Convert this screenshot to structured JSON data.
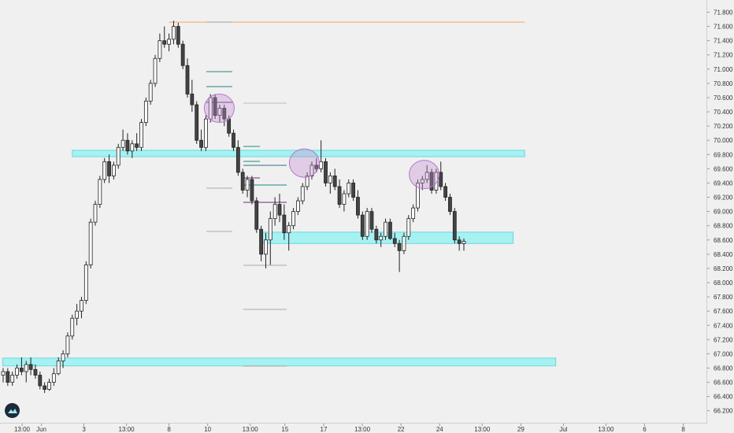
{
  "chart_data": {
    "type": "candlestick",
    "title": "",
    "xlabel": "",
    "ylabel": "",
    "ylim": [
      66.1,
      71.9
    ],
    "grid": false,
    "y_ticks": [
      "71.800",
      "71.600",
      "71.400",
      "71.200",
      "71.000",
      "70.800",
      "70.600",
      "70.400",
      "70.200",
      "70.000",
      "69.800",
      "69.600",
      "69.400",
      "69.200",
      "69.000",
      "68.800",
      "68.600",
      "68.400",
      "68.200",
      "68.000",
      "67.800",
      "67.600",
      "67.400",
      "67.200",
      "67.000",
      "66.800",
      "66.600",
      "66.400",
      "66.200"
    ],
    "y_tick_values": [
      71.8,
      71.6,
      71.4,
      71.2,
      71.0,
      70.8,
      70.6,
      70.4,
      70.2,
      70.0,
      69.8,
      69.6,
      69.4,
      69.2,
      69.0,
      68.8,
      68.6,
      68.4,
      68.2,
      68.0,
      67.8,
      67.6,
      67.4,
      67.2,
      67.0,
      66.8,
      66.6,
      66.4,
      66.2
    ],
    "x_ticks": [
      "13:00",
      "Jun",
      "3",
      "13:00",
      "8",
      "10",
      "13:00",
      "15",
      "17",
      "13:00",
      "22",
      "24",
      "13:00",
      "29",
      "Jul",
      "13:00",
      "6",
      "8"
    ],
    "x_tick_positions": [
      0.0,
      0.5,
      1.6,
      2.7,
      3.8,
      4.8,
      5.9,
      6.8,
      7.8,
      8.8,
      9.8,
      10.8,
      11.9,
      12.9,
      14.0,
      15.1,
      16.1,
      17.1
    ],
    "zones": [
      {
        "y_low": 69.77,
        "y_high": 69.86,
        "x_start": 1.3,
        "x_end": 13.0
      },
      {
        "y_low": 68.55,
        "y_high": 68.71,
        "x_start": 6.2,
        "x_end": 12.7
      },
      {
        "y_low": 66.83,
        "y_high": 66.94,
        "x_start": -0.5,
        "x_end": 13.8
      }
    ],
    "horizontal_levels": [
      {
        "y": 71.66,
        "x_start": 3.8,
        "x_end": 13.0,
        "color": "#f5a65b"
      }
    ],
    "circles": [
      {
        "x": 5.1,
        "y": 70.45
      },
      {
        "x": 7.3,
        "y": 69.68
      },
      {
        "x": 10.4,
        "y": 69.52
      }
    ],
    "series": [
      {
        "values": [
          [
            66.7,
            66.8,
            66.6,
            66.75
          ],
          [
            66.75,
            66.8,
            66.55,
            66.6
          ],
          [
            66.6,
            66.75,
            66.55,
            66.7
          ],
          [
            66.7,
            66.85,
            66.65,
            66.8
          ],
          [
            66.8,
            66.95,
            66.7,
            66.75
          ],
          [
            66.75,
            66.9,
            66.6,
            66.85
          ],
          [
            66.85,
            66.95,
            66.7,
            66.78
          ],
          [
            66.78,
            66.85,
            66.65,
            66.7
          ],
          [
            66.7,
            66.75,
            66.5,
            66.55
          ],
          [
            66.55,
            66.6,
            66.45,
            66.5
          ],
          [
            66.5,
            66.65,
            66.48,
            66.6
          ],
          [
            66.6,
            66.8,
            66.55,
            66.72
          ],
          [
            66.72,
            66.95,
            66.7,
            66.9
          ],
          [
            66.9,
            67.05,
            66.8,
            67.0
          ],
          [
            67.0,
            67.3,
            66.95,
            67.25
          ],
          [
            67.25,
            67.55,
            67.2,
            67.5
          ],
          [
            67.5,
            67.7,
            67.4,
            67.6
          ],
          [
            67.6,
            67.8,
            67.5,
            67.75
          ],
          [
            67.75,
            68.3,
            67.7,
            68.25
          ],
          [
            68.25,
            68.9,
            68.2,
            68.85
          ],
          [
            68.85,
            69.15,
            68.8,
            69.1
          ],
          [
            69.1,
            69.5,
            69.05,
            69.45
          ],
          [
            69.45,
            69.75,
            69.4,
            69.7
          ],
          [
            69.7,
            69.8,
            69.4,
            69.5
          ],
          [
            69.5,
            69.7,
            69.45,
            69.65
          ],
          [
            69.65,
            69.95,
            69.6,
            69.9
          ],
          [
            69.9,
            70.15,
            69.85,
            70.0
          ],
          [
            70.0,
            70.1,
            69.8,
            69.85
          ],
          [
            69.85,
            70.0,
            69.75,
            69.95
          ],
          [
            69.95,
            70.1,
            69.85,
            69.9
          ],
          [
            69.9,
            70.3,
            69.85,
            70.25
          ],
          [
            70.25,
            70.6,
            70.2,
            70.55
          ],
          [
            70.55,
            70.85,
            70.5,
            70.8
          ],
          [
            70.8,
            71.2,
            70.75,
            71.15
          ],
          [
            71.15,
            71.5,
            71.1,
            71.4
          ],
          [
            71.4,
            71.6,
            71.3,
            71.35
          ],
          [
            71.35,
            71.5,
            71.25,
            71.42
          ],
          [
            71.42,
            71.68,
            71.35,
            71.6
          ],
          [
            71.6,
            71.65,
            71.3,
            71.35
          ],
          [
            71.35,
            71.4,
            71.0,
            71.05
          ],
          [
            71.05,
            71.15,
            70.6,
            70.65
          ],
          [
            70.65,
            70.85,
            70.4,
            70.5
          ],
          [
            70.5,
            70.55,
            69.95,
            70.0
          ],
          [
            70.0,
            70.15,
            69.85,
            69.9
          ],
          [
            69.9,
            70.35,
            69.85,
            70.3
          ],
          [
            70.3,
            70.65,
            70.25,
            70.6
          ],
          [
            70.6,
            70.65,
            70.3,
            70.35
          ],
          [
            70.35,
            70.5,
            70.25,
            70.45
          ],
          [
            70.45,
            70.5,
            70.2,
            70.3
          ],
          [
            70.3,
            70.35,
            70.05,
            70.1
          ],
          [
            70.1,
            70.15,
            69.85,
            69.9
          ],
          [
            69.9,
            70.0,
            69.5,
            69.55
          ],
          [
            69.55,
            69.6,
            69.25,
            69.3
          ],
          [
            69.3,
            69.5,
            69.2,
            69.45
          ],
          [
            69.45,
            69.5,
            69.1,
            69.15
          ],
          [
            69.15,
            69.2,
            68.7,
            68.75
          ],
          [
            68.75,
            68.8,
            68.3,
            68.4
          ],
          [
            68.4,
            68.7,
            68.2,
            68.6
          ],
          [
            68.6,
            69.0,
            68.25,
            68.9
          ],
          [
            68.9,
            69.2,
            68.8,
            69.1
          ],
          [
            69.1,
            69.25,
            68.85,
            68.95
          ],
          [
            68.95,
            69.1,
            68.6,
            68.7
          ],
          [
            68.7,
            68.85,
            68.45,
            68.8
          ],
          [
            68.8,
            69.05,
            68.75,
            69.0
          ],
          [
            69.0,
            69.2,
            68.95,
            69.15
          ],
          [
            69.15,
            69.4,
            69.1,
            69.35
          ],
          [
            69.35,
            69.55,
            69.3,
            69.5
          ],
          [
            69.5,
            69.7,
            69.45,
            69.65
          ],
          [
            69.65,
            69.75,
            69.55,
            69.6
          ],
          [
            69.6,
            70.0,
            69.55,
            69.7
          ],
          [
            69.7,
            69.75,
            69.35,
            69.4
          ],
          [
            69.4,
            69.55,
            69.25,
            69.5
          ],
          [
            69.5,
            69.6,
            69.3,
            69.35
          ],
          [
            69.35,
            69.45,
            69.05,
            69.1
          ],
          [
            69.1,
            69.3,
            69.0,
            69.25
          ],
          [
            69.25,
            69.45,
            69.2,
            69.4
          ],
          [
            69.4,
            69.45,
            69.15,
            69.2
          ],
          [
            69.2,
            69.3,
            68.9,
            68.95
          ],
          [
            68.95,
            69.0,
            68.6,
            68.65
          ],
          [
            68.65,
            69.05,
            68.6,
            69.0
          ],
          [
            69.0,
            69.05,
            68.7,
            68.75
          ],
          [
            68.75,
            68.8,
            68.55,
            68.6
          ],
          [
            68.6,
            68.7,
            68.5,
            68.65
          ],
          [
            68.65,
            68.9,
            68.6,
            68.85
          ],
          [
            68.85,
            68.9,
            68.6,
            68.62
          ],
          [
            68.62,
            68.7,
            68.5,
            68.55
          ],
          [
            68.55,
            68.6,
            68.15,
            68.45
          ],
          [
            68.45,
            68.7,
            68.4,
            68.65
          ],
          [
            68.65,
            68.95,
            68.6,
            68.9
          ],
          [
            68.9,
            69.1,
            68.85,
            69.05
          ],
          [
            69.05,
            69.45,
            69.0,
            69.4
          ],
          [
            69.4,
            69.5,
            69.3,
            69.45
          ],
          [
            69.45,
            69.65,
            69.4,
            69.55
          ],
          [
            69.55,
            69.6,
            69.25,
            69.3
          ],
          [
            69.3,
            69.6,
            69.25,
            69.55
          ],
          [
            69.55,
            69.7,
            69.3,
            69.35
          ],
          [
            69.35,
            69.4,
            69.15,
            69.2
          ],
          [
            69.2,
            69.25,
            68.95,
            69.0
          ],
          [
            69.0,
            69.05,
            68.55,
            68.6
          ],
          [
            68.6,
            68.65,
            68.45,
            68.55
          ],
          [
            68.55,
            68.62,
            68.45,
            68.58
          ]
        ]
      }
    ]
  }
}
